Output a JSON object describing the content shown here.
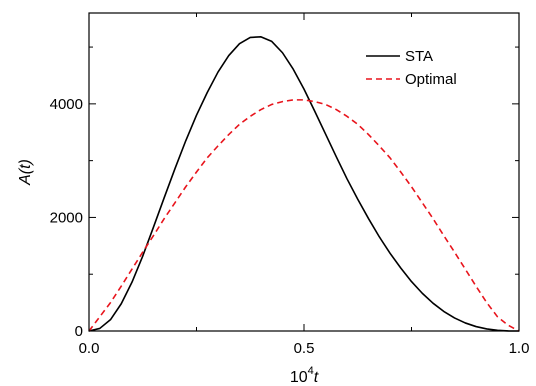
{
  "chart_data": {
    "type": "line",
    "title": "",
    "xlabel": {
      "base": "10",
      "exponent": "4",
      "var": "t"
    },
    "ylabel": "A(t)",
    "xlim": [
      0.0,
      1.0
    ],
    "ylim": [
      0,
      5600
    ],
    "xticks": [
      {
        "value": 0.0,
        "label": "0.0"
      },
      {
        "value": 0.5,
        "label": "0.5"
      },
      {
        "value": 1.0,
        "label": "1.0"
      }
    ],
    "yticks": [
      {
        "value": 0,
        "label": "0"
      },
      {
        "value": 2000,
        "label": "2000"
      },
      {
        "value": 4000,
        "label": "4000"
      }
    ],
    "legend_position": "top-right",
    "grid": false,
    "series": [
      {
        "name": "STA",
        "color": "#000000",
        "dash": "solid",
        "x": [
          0.0,
          0.025,
          0.05,
          0.075,
          0.1,
          0.125,
          0.15,
          0.175,
          0.2,
          0.225,
          0.25,
          0.275,
          0.3,
          0.325,
          0.35,
          0.375,
          0.4,
          0.425,
          0.45,
          0.475,
          0.5,
          0.525,
          0.55,
          0.575,
          0.6,
          0.625,
          0.65,
          0.675,
          0.7,
          0.725,
          0.75,
          0.775,
          0.8,
          0.825,
          0.85,
          0.875,
          0.9,
          0.925,
          0.95,
          0.975,
          1.0
        ],
        "y": [
          0,
          45,
          200,
          480,
          860,
          1320,
          1830,
          2350,
          2860,
          3350,
          3800,
          4200,
          4560,
          4850,
          5060,
          5170,
          5180,
          5100,
          4900,
          4610,
          4260,
          3870,
          3470,
          3070,
          2680,
          2320,
          1980,
          1660,
          1370,
          1110,
          870,
          665,
          490,
          345,
          230,
          142,
          78,
          36,
          12,
          2,
          0
        ]
      },
      {
        "name": "Optimal",
        "color": "#e8141c",
        "dash": "dashed",
        "x": [
          0.0,
          0.025,
          0.05,
          0.075,
          0.1,
          0.125,
          0.15,
          0.175,
          0.2,
          0.225,
          0.25,
          0.275,
          0.3,
          0.325,
          0.35,
          0.375,
          0.4,
          0.425,
          0.45,
          0.475,
          0.5,
          0.525,
          0.55,
          0.575,
          0.6,
          0.625,
          0.65,
          0.675,
          0.7,
          0.725,
          0.75,
          0.775,
          0.8,
          0.825,
          0.85,
          0.875,
          0.9,
          0.925,
          0.95,
          0.975,
          1.0
        ],
        "y": [
          0,
          250,
          500,
          790,
          1090,
          1390,
          1680,
          1980,
          2260,
          2540,
          2800,
          3050,
          3260,
          3460,
          3640,
          3780,
          3900,
          3990,
          4040,
          4070,
          4070,
          4040,
          3990,
          3900,
          3780,
          3640,
          3460,
          3260,
          3050,
          2800,
          2540,
          2260,
          1980,
          1680,
          1390,
          1090,
          790,
          500,
          250,
          100,
          0
        ]
      }
    ]
  }
}
